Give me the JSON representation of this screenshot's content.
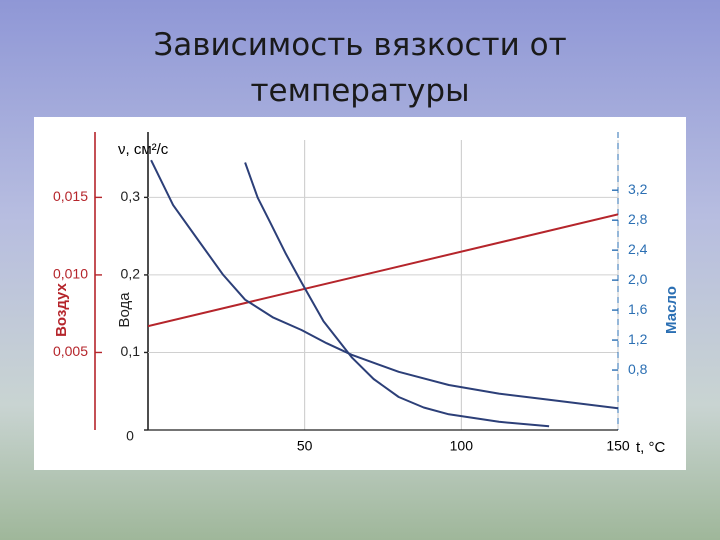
{
  "chart_data": {
    "type": "line",
    "title": "Зависимость вязкости от температуры",
    "ylabel": "ν, см²/с",
    "xlabel": "t, °C",
    "xlim": [
      0,
      150
    ],
    "xticks": [
      50,
      100,
      150
    ],
    "grid": true,
    "axes": [
      {
        "name": "Воздух",
        "color": "#b5252b",
        "lim": [
          0,
          0.0187
        ],
        "ticks": [
          {
            "value": 0.005,
            "label": "0,005"
          },
          {
            "value": 0.01,
            "label": "0,010"
          },
          {
            "value": 0.015,
            "label": "0,015"
          }
        ]
      },
      {
        "name": "Вода",
        "color": "#222222",
        "lim": [
          0,
          0.374
        ],
        "ticks": [
          0,
          {
            "value": 0.1,
            "label": "0,1"
          },
          {
            "value": 0.2,
            "label": "0,2"
          },
          {
            "value": 0.3,
            "label": "0,3"
          }
        ]
      },
      {
        "name": "Масло",
        "color": "#2b6fb3",
        "lim": [
          0,
          3.87
        ],
        "ticks": [
          {
            "value": 0.8,
            "label": "0,8"
          },
          {
            "value": 1.2,
            "label": "1,2"
          },
          {
            "value": 1.6,
            "label": "1,6"
          },
          {
            "value": 2.0,
            "label": "2,0"
          },
          {
            "value": 2.4,
            "label": "2,4"
          },
          {
            "value": 2.8,
            "label": "2,8"
          },
          {
            "value": 3.2,
            "label": "3,2"
          }
        ]
      }
    ],
    "series": [
      {
        "axis": 0,
        "color": "#b5252b",
        "x": [
          0,
          150
        ],
        "values": [
          0.0067,
          0.0139
        ]
      },
      {
        "axis": 1,
        "color": "#2c3f78",
        "x": [
          1,
          8,
          16,
          24,
          31,
          40,
          49,
          57,
          65,
          80,
          96,
          112,
          128,
          150
        ],
        "values": [
          0.348,
          0.29,
          0.245,
          0.2,
          0.168,
          0.145,
          0.129,
          0.112,
          0.097,
          0.075,
          0.058,
          0.047,
          0.039,
          0.028
        ]
      },
      {
        "axis": 2,
        "color": "#2c3f78",
        "x": [
          31,
          35,
          39,
          44,
          49,
          56,
          65,
          72,
          80,
          88,
          96,
          112,
          128
        ],
        "values": [
          3.57,
          3.1,
          2.77,
          2.35,
          1.97,
          1.45,
          0.97,
          0.68,
          0.44,
          0.3,
          0.21,
          0.11,
          0.05
        ]
      }
    ]
  }
}
